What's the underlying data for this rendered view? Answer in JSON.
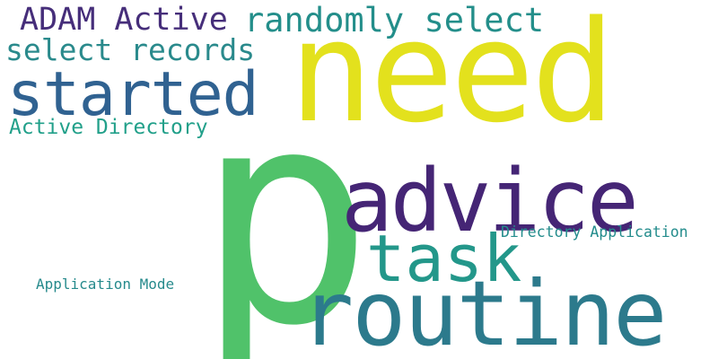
{
  "words": [
    {
      "id": "need",
      "text": "need",
      "color": "#e3e11d"
    },
    {
      "id": "p",
      "text": "p",
      "color": "#50c26a"
    },
    {
      "id": "advice",
      "text": "advice",
      "color": "#452575"
    },
    {
      "id": "routine",
      "text": "routine",
      "color": "#2c7a8c"
    },
    {
      "id": "task",
      "text": "task",
      "color": "#23978a"
    },
    {
      "id": "started",
      "text": "started",
      "color": "#306291"
    },
    {
      "id": "randomly_select",
      "text": "randomly select",
      "color": "#238e8a"
    },
    {
      "id": "adam_active",
      "text": "ADAM Active",
      "color": "#462e7a"
    },
    {
      "id": "select_records",
      "text": "select records",
      "color": "#2a8a8c"
    },
    {
      "id": "active_directory",
      "text": "Active Directory",
      "color": "#22a08a"
    },
    {
      "id": "directory_application",
      "text": "Directory Application",
      "color": "#238c8c"
    },
    {
      "id": "application_mode",
      "text": "Application Mode",
      "color": "#268a8c"
    }
  ]
}
